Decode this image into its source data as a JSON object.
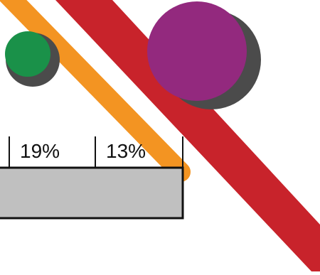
{
  "percent_labels": [
    "19%",
    "13%"
  ],
  "colors": {
    "red_band": "#c8232b",
    "orange_band": "#f39422",
    "green_circle": "#1a9149",
    "purple_circle": "#93297e",
    "shadow": "#4b4b4b",
    "gray_bar": "#c0c0c0",
    "outline": "#111111"
  }
}
